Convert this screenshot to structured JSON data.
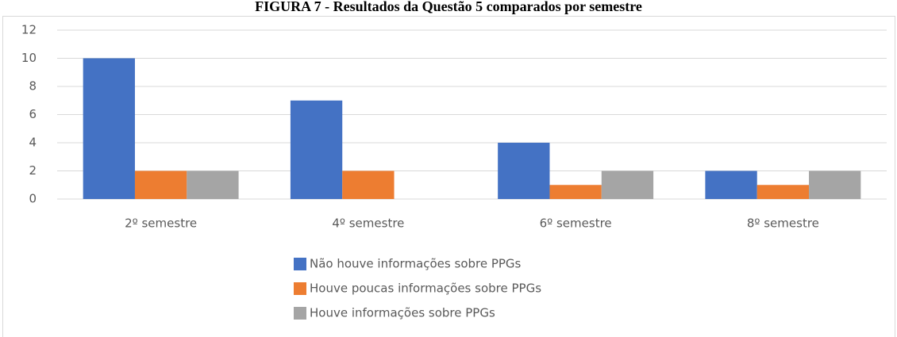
{
  "chart_data": {
    "type": "bar",
    "title": "FIGURA 7 - Resultados da Questão 5 comparados por semestre",
    "categories": [
      "2º semestre",
      "4º semestre",
      "6º semestre",
      "8º semestre"
    ],
    "series": [
      {
        "name": "Não houve informações sobre PPGs",
        "color": "#4472c4",
        "values": [
          10,
          7,
          4,
          2
        ]
      },
      {
        "name": "Houve poucas informações sobre PPGs",
        "color": "#ed7d31",
        "values": [
          2,
          2,
          1,
          1
        ]
      },
      {
        "name": "Houve informações sobre PPGs",
        "color": "#a5a5a5",
        "values": [
          2,
          0,
          2,
          2
        ]
      }
    ],
    "ylim": [
      0,
      12
    ],
    "yticks": [
      0,
      2,
      4,
      6,
      8,
      10,
      12
    ],
    "grid": true,
    "legend": "bottom"
  }
}
